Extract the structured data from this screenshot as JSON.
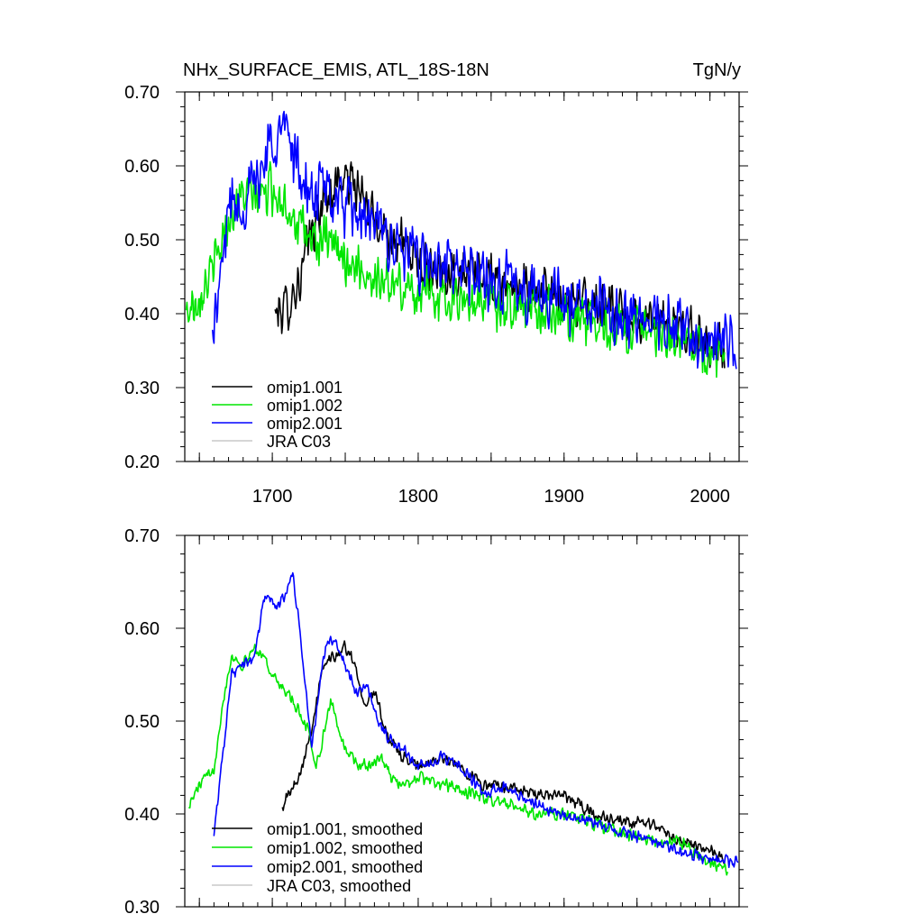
{
  "chart_data": [
    {
      "type": "line",
      "title": "NHx_SURFACE_EMIS, ATL_18S-18N",
      "units": "TgN/y",
      "xlim": [
        1640,
        2020
      ],
      "ylim": [
        0.2,
        0.7
      ],
      "x_ticks": [
        1700,
        1800,
        1900,
        2000
      ],
      "y_ticks": [
        0.2,
        0.3,
        0.4,
        0.5,
        0.6,
        0.7
      ],
      "y_tick_labels": [
        "0.20",
        "0.30",
        "0.40",
        "0.50",
        "0.60",
        "0.70"
      ],
      "legend_position": "bottom-left",
      "series": [
        {
          "name": "omip1.001",
          "color": "#000000",
          "start": 1702,
          "end": 2010,
          "noise": 0.04,
          "anchors": [
            [
              1702,
              0.4
            ],
            [
              1710,
              0.41
            ],
            [
              1715,
              0.43
            ],
            [
              1720,
              0.45
            ],
            [
              1725,
              0.5
            ],
            [
              1735,
              0.55
            ],
            [
              1745,
              0.58
            ],
            [
              1755,
              0.58
            ],
            [
              1765,
              0.54
            ],
            [
              1780,
              0.51
            ],
            [
              1790,
              0.49
            ],
            [
              1800,
              0.47
            ],
            [
              1820,
              0.46
            ],
            [
              1840,
              0.45
            ],
            [
              1860,
              0.44
            ],
            [
              1880,
              0.43
            ],
            [
              1900,
              0.42
            ],
            [
              1920,
              0.41
            ],
            [
              1940,
              0.4
            ],
            [
              1960,
              0.39
            ],
            [
              1980,
              0.38
            ],
            [
              2000,
              0.36
            ],
            [
              2010,
              0.35
            ]
          ]
        },
        {
          "name": "omip1.002",
          "color": "#00e600",
          "start": 1641,
          "end": 2010,
          "noise": 0.04,
          "anchors": [
            [
              1641,
              0.4
            ],
            [
              1650,
              0.43
            ],
            [
              1660,
              0.46
            ],
            [
              1670,
              0.53
            ],
            [
              1680,
              0.56
            ],
            [
              1690,
              0.56
            ],
            [
              1700,
              0.57
            ],
            [
              1710,
              0.55
            ],
            [
              1720,
              0.51
            ],
            [
              1730,
              0.5
            ],
            [
              1740,
              0.49
            ],
            [
              1760,
              0.46
            ],
            [
              1780,
              0.44
            ],
            [
              1800,
              0.43
            ],
            [
              1820,
              0.42
            ],
            [
              1840,
              0.42
            ],
            [
              1860,
              0.41
            ],
            [
              1880,
              0.41
            ],
            [
              1900,
              0.4
            ],
            [
              1920,
              0.39
            ],
            [
              1940,
              0.38
            ],
            [
              1960,
              0.37
            ],
            [
              1980,
              0.36
            ],
            [
              2000,
              0.35
            ],
            [
              2010,
              0.34
            ]
          ]
        },
        {
          "name": "omip2.001",
          "color": "#0000ff",
          "start": 1659,
          "end": 2018,
          "noise": 0.05,
          "anchors": [
            [
              1659,
              0.37
            ],
            [
              1665,
              0.45
            ],
            [
              1670,
              0.55
            ],
            [
              1680,
              0.55
            ],
            [
              1690,
              0.58
            ],
            [
              1700,
              0.64
            ],
            [
              1710,
              0.65
            ],
            [
              1715,
              0.62
            ],
            [
              1725,
              0.55
            ],
            [
              1735,
              0.57
            ],
            [
              1745,
              0.55
            ],
            [
              1760,
              0.53
            ],
            [
              1780,
              0.5
            ],
            [
              1800,
              0.47
            ],
            [
              1820,
              0.46
            ],
            [
              1840,
              0.45
            ],
            [
              1860,
              0.44
            ],
            [
              1880,
              0.43
            ],
            [
              1900,
              0.42
            ],
            [
              1920,
              0.41
            ],
            [
              1940,
              0.4
            ],
            [
              1960,
              0.39
            ],
            [
              1980,
              0.38
            ],
            [
              2000,
              0.36
            ],
            [
              2018,
              0.35
            ]
          ]
        },
        {
          "name": "JRA C03",
          "color": "#c8c8c8",
          "start": 1958,
          "end": 2018,
          "noise": 0.0,
          "anchors": [
            [
              1958,
              0.36
            ],
            [
              2018,
              0.36
            ]
          ],
          "hidden": true
        }
      ]
    },
    {
      "type": "line",
      "title": "",
      "xlim": [
        1640,
        2020
      ],
      "ylim": [
        0.3,
        0.7
      ],
      "x_ticks": [
        1700,
        1800,
        1900,
        2000
      ],
      "y_ticks": [
        0.3,
        0.4,
        0.5,
        0.6,
        0.7
      ],
      "y_tick_labels": [
        "0.30",
        "0.40",
        "0.50",
        "0.60",
        "0.70"
      ],
      "legend_position": "bottom-left",
      "series": [
        {
          "name": "omip1.001, smoothed",
          "color": "#000000",
          "start": 1707,
          "end": 2010,
          "noise": 0.008,
          "anchors": [
            [
              1707,
              0.41
            ],
            [
              1715,
              0.43
            ],
            [
              1720,
              0.45
            ],
            [
              1728,
              0.5
            ],
            [
              1735,
              0.56
            ],
            [
              1742,
              0.57
            ],
            [
              1750,
              0.58
            ],
            [
              1757,
              0.56
            ],
            [
              1763,
              0.52
            ],
            [
              1770,
              0.53
            ],
            [
              1780,
              0.48
            ],
            [
              1790,
              0.46
            ],
            [
              1800,
              0.45
            ],
            [
              1815,
              0.46
            ],
            [
              1830,
              0.45
            ],
            [
              1845,
              0.43
            ],
            [
              1860,
              0.43
            ],
            [
              1880,
              0.42
            ],
            [
              1900,
              0.42
            ],
            [
              1920,
              0.4
            ],
            [
              1940,
              0.39
            ],
            [
              1960,
              0.39
            ],
            [
              1980,
              0.37
            ],
            [
              2000,
              0.36
            ],
            [
              2010,
              0.35
            ]
          ]
        },
        {
          "name": "omip1.002, smoothed",
          "color": "#00e600",
          "start": 1643,
          "end": 2012,
          "noise": 0.008,
          "anchors": [
            [
              1643,
              0.41
            ],
            [
              1650,
              0.43
            ],
            [
              1660,
              0.45
            ],
            [
              1666,
              0.52
            ],
            [
              1672,
              0.57
            ],
            [
              1680,
              0.56
            ],
            [
              1688,
              0.58
            ],
            [
              1694,
              0.57
            ],
            [
              1700,
              0.55
            ],
            [
              1710,
              0.53
            ],
            [
              1718,
              0.51
            ],
            [
              1725,
              0.49
            ],
            [
              1730,
              0.45
            ],
            [
              1740,
              0.52
            ],
            [
              1750,
              0.47
            ],
            [
              1760,
              0.45
            ],
            [
              1775,
              0.46
            ],
            [
              1785,
              0.43
            ],
            [
              1800,
              0.44
            ],
            [
              1820,
              0.43
            ],
            [
              1840,
              0.42
            ],
            [
              1860,
              0.41
            ],
            [
              1880,
              0.4
            ],
            [
              1900,
              0.4
            ],
            [
              1920,
              0.39
            ],
            [
              1940,
              0.38
            ],
            [
              1960,
              0.37
            ],
            [
              1980,
              0.37
            ],
            [
              1995,
              0.35
            ],
            [
              2012,
              0.34
            ]
          ]
        },
        {
          "name": "omip2.001, smoothed",
          "color": "#0000ff",
          "start": 1660,
          "end": 2019,
          "noise": 0.008,
          "anchors": [
            [
              1660,
              0.38
            ],
            [
              1665,
              0.45
            ],
            [
              1672,
              0.55
            ],
            [
              1680,
              0.56
            ],
            [
              1688,
              0.57
            ],
            [
              1695,
              0.64
            ],
            [
              1703,
              0.62
            ],
            [
              1710,
              0.64
            ],
            [
              1714,
              0.66
            ],
            [
              1720,
              0.58
            ],
            [
              1727,
              0.47
            ],
            [
              1735,
              0.57
            ],
            [
              1742,
              0.59
            ],
            [
              1750,
              0.56
            ],
            [
              1757,
              0.53
            ],
            [
              1765,
              0.54
            ],
            [
              1772,
              0.5
            ],
            [
              1780,
              0.48
            ],
            [
              1790,
              0.47
            ],
            [
              1800,
              0.45
            ],
            [
              1815,
              0.46
            ],
            [
              1830,
              0.45
            ],
            [
              1845,
              0.42
            ],
            [
              1860,
              0.43
            ],
            [
              1880,
              0.41
            ],
            [
              1900,
              0.4
            ],
            [
              1920,
              0.39
            ],
            [
              1940,
              0.38
            ],
            [
              1960,
              0.37
            ],
            [
              1980,
              0.36
            ],
            [
              2000,
              0.35
            ],
            [
              2019,
              0.35
            ]
          ]
        },
        {
          "name": "JRA C03, smoothed",
          "color": "#c8c8c8",
          "start": 1958,
          "end": 2018,
          "noise": 0.0,
          "anchors": [
            [
              1958,
              0.36
            ],
            [
              2018,
              0.36
            ]
          ],
          "hidden": true
        }
      ]
    }
  ]
}
